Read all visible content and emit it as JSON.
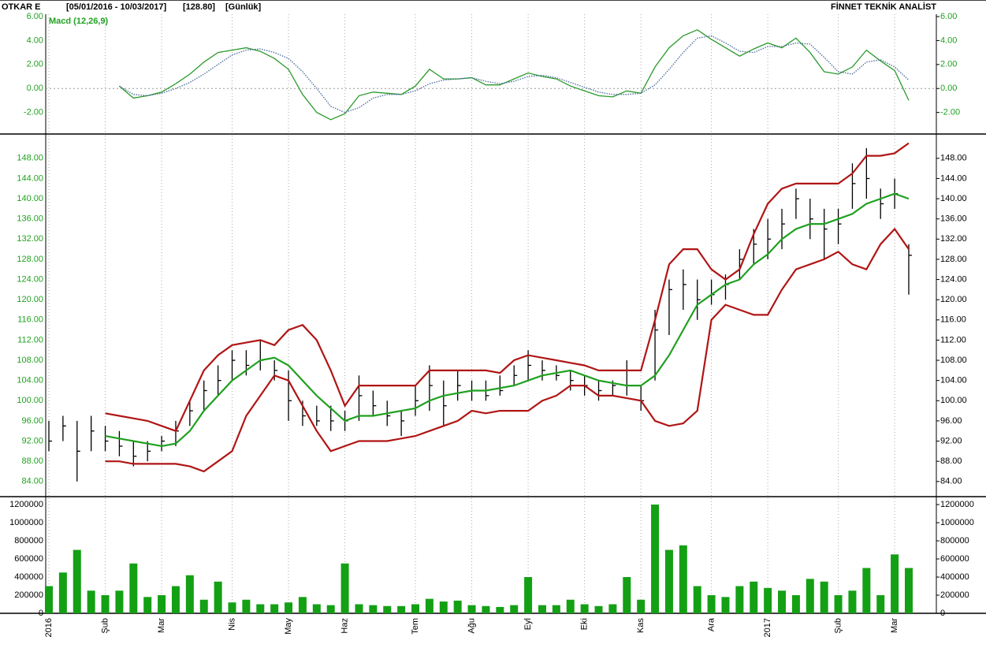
{
  "header": {
    "symbol": "OTKAR E",
    "range": "[05/01/2016 - 10/03/2017]",
    "last": "[128.80]",
    "period": "[Günlük]",
    "brand": "FİNNET TEKNİK ANALİST"
  },
  "chart_data": [
    {
      "type": "line",
      "label": "Macd (12,26,9)",
      "ylim": [
        -3.8,
        6.2
      ],
      "yticks": [
        {
          "value": -2,
          "label": "-2.00"
        },
        {
          "value": 0,
          "label": "0.00"
        },
        {
          "value": 2,
          "label": "2.00"
        },
        {
          "value": 4,
          "label": "4.00"
        },
        {
          "value": 6,
          "label": "6.00"
        }
      ],
      "zero_line": true,
      "series": [
        {
          "color": "#2a9a2a",
          "style": "solid",
          "values": [
            null,
            null,
            null,
            null,
            null,
            0.2,
            -0.8,
            -0.6,
            -0.3,
            0.4,
            1.2,
            2.2,
            3.0,
            3.2,
            3.4,
            3.1,
            2.5,
            1.6,
            -0.5,
            -2.0,
            -2.6,
            -2.1,
            -0.6,
            -0.3,
            -0.4,
            -0.5,
            0.2,
            1.6,
            0.8,
            0.8,
            0.9,
            0.3,
            0.3,
            0.8,
            1.3,
            1.0,
            0.8,
            0.2,
            -0.2,
            -0.6,
            -0.7,
            -0.2,
            -0.4,
            1.8,
            3.4,
            4.4,
            4.9,
            4.1,
            3.4,
            2.7,
            3.3,
            3.8,
            3.4,
            4.2,
            3.0,
            1.4,
            1.2,
            1.8,
            3.2,
            2.3,
            1.5,
            -1.0
          ]
        },
        {
          "color": "#4a6a9a",
          "style": "dotted",
          "values": [
            null,
            null,
            null,
            null,
            null,
            0.2,
            -0.5,
            -0.6,
            -0.4,
            0,
            0.5,
            1.2,
            2.0,
            2.8,
            3.2,
            3.3,
            3.0,
            2.5,
            1.4,
            0,
            -1.5,
            -2.0,
            -1.6,
            -0.8,
            -0.5,
            -0.5,
            -0.2,
            0.4,
            0.7,
            0.8,
            0.9,
            0.6,
            0.4,
            0.6,
            1.0,
            1.1,
            0.9,
            0.5,
            0.1,
            -0.3,
            -0.5,
            -0.5,
            -0.4,
            0.3,
            1.6,
            3.0,
            4.2,
            4.4,
            3.8,
            3.1,
            3.0,
            3.5,
            3.5,
            3.8,
            3.7,
            2.6,
            1.4,
            1.2,
            2.2,
            2.4,
            1.8,
            0.7
          ]
        }
      ]
    },
    {
      "type": "hlc",
      "ylim": [
        81,
        152.5
      ],
      "yticks": [
        {
          "value": 84,
          "label": "84.00"
        },
        {
          "value": 88,
          "label": "88.00"
        },
        {
          "value": 92,
          "label": "92.00"
        },
        {
          "value": 96,
          "label": "96.00"
        },
        {
          "value": 100,
          "label": "100.00"
        },
        {
          "value": 104,
          "label": "104.00"
        },
        {
          "value": 108,
          "label": "108.00"
        },
        {
          "value": 112,
          "label": "112.00"
        },
        {
          "value": 116,
          "label": "116.00"
        },
        {
          "value": 120,
          "label": "120.00"
        },
        {
          "value": 124,
          "label": "124.00"
        },
        {
          "value": 128,
          "label": "128.00"
        },
        {
          "value": 132,
          "label": "132.00"
        },
        {
          "value": 136,
          "label": "136.00"
        },
        {
          "value": 140,
          "label": "140.00"
        },
        {
          "value": 144,
          "label": "144.00"
        },
        {
          "value": 148,
          "label": "148.00"
        }
      ],
      "color": "#000000",
      "high": [
        96,
        97,
        96,
        97,
        95,
        94,
        92,
        92,
        93,
        96,
        100,
        104,
        107,
        110,
        110,
        112,
        108,
        106,
        100,
        99,
        99,
        98,
        105,
        102,
        100,
        98,
        103,
        107,
        104,
        106,
        104,
        104,
        105,
        107,
        110,
        108,
        107,
        106,
        105,
        104,
        104,
        108,
        103,
        118,
        124,
        126,
        124,
        124,
        125,
        130,
        134,
        136,
        138,
        142,
        140,
        138,
        138,
        147,
        150,
        142,
        144,
        131
      ],
      "low": [
        90,
        92,
        84,
        90,
        90,
        89,
        87,
        88,
        90,
        91,
        95,
        98,
        101,
        104,
        105,
        106,
        104,
        96,
        95,
        95,
        94,
        94,
        96,
        97,
        95,
        93,
        97,
        98,
        95,
        100,
        100,
        100,
        101,
        103,
        104,
        104,
        104,
        102,
        101,
        100,
        101,
        101,
        98,
        104,
        113,
        118,
        116,
        119,
        120,
        124,
        127,
        128,
        130,
        136,
        132,
        128,
        131,
        138,
        140,
        136,
        138,
        121
      ],
      "close": [
        92,
        95,
        90,
        94,
        92,
        91,
        89,
        90,
        92,
        94,
        98,
        102,
        104,
        108,
        107,
        108,
        106,
        100,
        97,
        96,
        96,
        96,
        101,
        99,
        97,
        96,
        100,
        103,
        99,
        103,
        102,
        101,
        102,
        105,
        107,
        106,
        105,
        104,
        103,
        102,
        103,
        103,
        100,
        114,
        122,
        123,
        120,
        121,
        123,
        128,
        131,
        132,
        135,
        140,
        136,
        134,
        135,
        143,
        144,
        139,
        141,
        128.8
      ],
      "series": [
        {
          "color": "#b01515",
          "values": [
            null,
            null,
            null,
            null,
            97.5,
            97,
            96.5,
            96,
            95,
            94,
            100,
            106,
            109,
            111,
            111.5,
            112,
            111,
            114,
            115,
            112,
            106,
            99,
            103,
            103,
            103,
            103,
            103,
            106,
            106,
            106,
            106,
            106,
            105.5,
            108,
            109,
            108.5,
            108,
            107.5,
            107,
            106,
            106,
            106,
            106,
            116,
            127,
            130,
            130,
            126,
            124,
            126,
            133,
            139,
            142,
            143,
            143,
            143,
            143,
            145,
            148.5,
            148.5,
            149,
            151
          ]
        },
        {
          "color": "#1fa01f",
          "values": [
            null,
            null,
            null,
            null,
            93,
            92.5,
            92,
            91.5,
            91,
            91.5,
            94,
            98,
            101,
            104,
            106,
            108,
            108.5,
            107,
            104,
            101,
            98.5,
            96,
            97,
            97,
            97.5,
            98,
            98.5,
            100,
            101,
            101.5,
            102,
            102,
            102.5,
            103,
            104,
            105,
            105.5,
            106,
            105,
            104,
            103.5,
            103,
            103,
            105,
            109,
            114,
            119,
            121,
            123,
            124,
            127,
            129,
            132,
            134,
            135,
            135,
            136,
            137,
            139,
            140,
            141,
            140
          ]
        },
        {
          "color": "#b01515",
          "values": [
            null,
            null,
            null,
            null,
            88,
            88,
            87.5,
            87.5,
            87.5,
            87.5,
            87,
            86,
            88,
            90,
            97,
            101,
            105,
            104,
            99,
            94,
            90,
            91,
            92,
            92,
            92,
            92.5,
            93,
            94,
            95,
            96,
            98,
            97.5,
            98,
            98,
            98,
            100,
            101,
            103,
            103,
            101,
            101,
            100.5,
            100,
            96,
            95,
            95.5,
            98,
            116,
            119,
            118,
            117,
            117,
            122,
            126,
            127,
            128,
            129.5,
            127,
            126,
            131,
            134,
            130
          ]
        }
      ]
    },
    {
      "type": "bar",
      "ylim": [
        0,
        1270000
      ],
      "color": "#14a014",
      "yticks": [
        0,
        200000,
        400000,
        600000,
        800000,
        1000000,
        1200000
      ],
      "categories": [
        "2016",
        null,
        null,
        null,
        "Şub",
        null,
        null,
        null,
        "Mar",
        null,
        null,
        null,
        null,
        "Nis",
        null,
        null,
        null,
        "May",
        null,
        null,
        null,
        "Haz",
        null,
        null,
        null,
        null,
        "Tem",
        null,
        null,
        null,
        "Ağu",
        null,
        null,
        null,
        "Eyl",
        null,
        null,
        null,
        "Eki",
        null,
        null,
        null,
        "Kas",
        null,
        null,
        null,
        null,
        "Ara",
        null,
        null,
        null,
        "2017",
        null,
        null,
        null,
        null,
        "Şub",
        null,
        null,
        null,
        "Mar",
        null
      ],
      "values": [
        300000,
        450000,
        700000,
        250000,
        200000,
        250000,
        550000,
        180000,
        200000,
        300000,
        420000,
        150000,
        350000,
        120000,
        150000,
        100000,
        100000,
        120000,
        180000,
        100000,
        90000,
        550000,
        100000,
        90000,
        80000,
        80000,
        100000,
        160000,
        130000,
        140000,
        90000,
        80000,
        70000,
        90000,
        400000,
        90000,
        90000,
        150000,
        100000,
        80000,
        100000,
        400000,
        150000,
        1200000,
        700000,
        750000,
        300000,
        200000,
        180000,
        300000,
        350000,
        280000,
        250000,
        200000,
        380000,
        350000,
        200000,
        250000,
        500000,
        200000,
        650000,
        500000
      ]
    }
  ]
}
